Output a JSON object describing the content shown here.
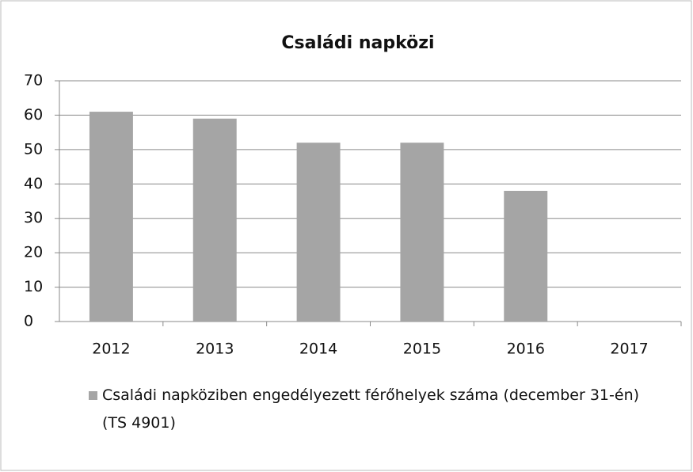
{
  "chart_data": {
    "type": "bar",
    "title": "Családi napközi",
    "categories": [
      "2012",
      "2013",
      "2014",
      "2015",
      "2016",
      "2017"
    ],
    "series": [
      {
        "name": "Családi napköziben engedélyezett férőhelyek száma (december 31-én)\n(TS 4901)",
        "color": "#a5a5a5",
        "values": [
          61,
          59,
          52,
          52,
          38,
          null
        ]
      }
    ],
    "ylim": [
      0,
      70
    ],
    "yticks": [
      0,
      10,
      20,
      30,
      40,
      50,
      60,
      70
    ],
    "grid": true,
    "legend": "bottom"
  }
}
